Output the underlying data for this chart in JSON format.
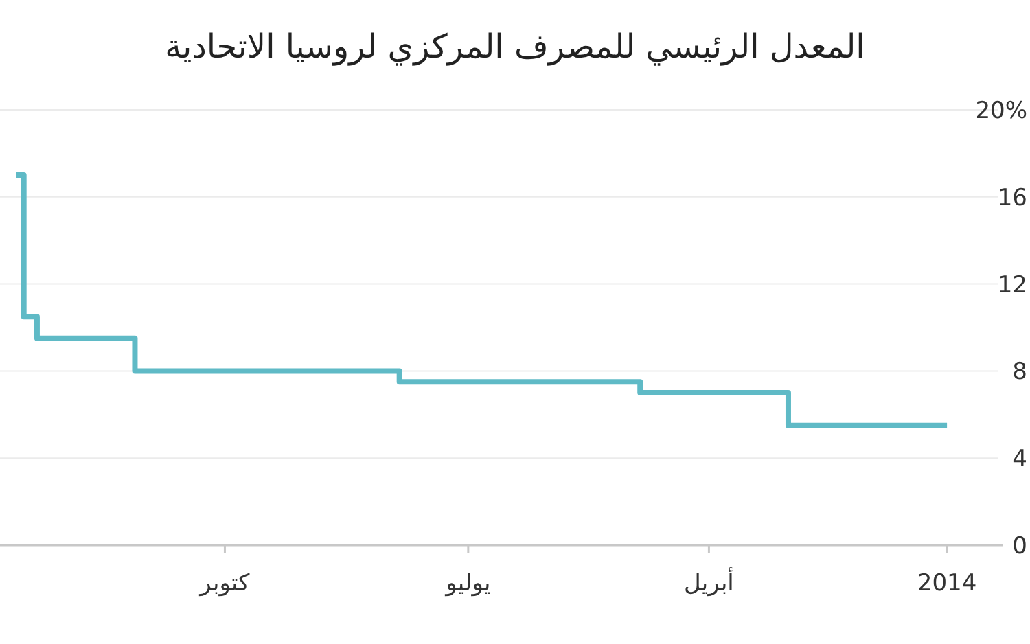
{
  "chart_data": {
    "type": "step",
    "title": "المعدل الرئيسي للمصرف المركزي لروسيا الاتحادية",
    "categories": [
      null,
      null,
      null,
      null,
      null,
      null,
      null,
      null,
      null,
      null,
      null,
      null,
      null,
      null,
      null,
      null,
      null,
      null,
      null,
      null,
      null,
      null,
      null,
      null,
      null,
      null,
      null,
      null,
      null,
      null,
      null,
      null,
      null,
      null,
      null,
      null,
      null,
      null,
      null,
      null,
      null,
      null,
      null,
      null,
      null,
      null,
      null,
      null,
      null,
      null,
      null,
      null,
      null,
      null,
      null,
      null,
      null,
      null,
      null,
      null,
      null,
      null,
      null,
      null,
      null,
      null,
      null,
      null,
      null,
      null,
      null,
      null,
      null,
      null,
      null,
      null,
      null,
      null,
      null,
      "كتوبر",
      null,
      null,
      null,
      null,
      null,
      null,
      null,
      null,
      null,
      null,
      null,
      null,
      null,
      null,
      null,
      null,
      null,
      null,
      null,
      null,
      null,
      null,
      null,
      null,
      null,
      null,
      null,
      null,
      null,
      null,
      null,
      null,
      null,
      null,
      null,
      null,
      null,
      null,
      null,
      null,
      null,
      null,
      null,
      null,
      null,
      null,
      null,
      null,
      null,
      null,
      null,
      null,
      null,
      null,
      null,
      null,
      null,
      null,
      null,
      null,
      null,
      null,
      null,
      null,
      null,
      null,
      null,
      null,
      null,
      null,
      null,
      null,
      null,
      null,
      null,
      null,
      null,
      null,
      null,
      null,
      null,
      null,
      null,
      null,
      null,
      null,
      null,
      null,
      null,
      null,
      null,
      "يوليو",
      null,
      null,
      null,
      null,
      null,
      null,
      null,
      null,
      null,
      null,
      null,
      null,
      null,
      null,
      null,
      null,
      null,
      null,
      null,
      null,
      null,
      null,
      null,
      null,
      null,
      null,
      null,
      null,
      null,
      null,
      null,
      null,
      null,
      null,
      null,
      null,
      null,
      null,
      null,
      null,
      null,
      null,
      null,
      null,
      null,
      null,
      null,
      null,
      null,
      null,
      null,
      null,
      null,
      null,
      null,
      null,
      null,
      null,
      null,
      null,
      null,
      null,
      null,
      null,
      null,
      null,
      null,
      null,
      null,
      null,
      null,
      null,
      null,
      null,
      null,
      null,
      null,
      null,
      null,
      null,
      null,
      null,
      null,
      null,
      null,
      null,
      null,
      null,
      null,
      null,
      "أبريل",
      null,
      null,
      null,
      null,
      null,
      null,
      null,
      null,
      null,
      null,
      null,
      null,
      null,
      null,
      null,
      null,
      null,
      null,
      null,
      null,
      null,
      null,
      null,
      null,
      null,
      null,
      null,
      null,
      null,
      null,
      null,
      null,
      null,
      null,
      null,
      null,
      null,
      null,
      null,
      null,
      null,
      null,
      null,
      null,
      null,
      null,
      null,
      null,
      null,
      null,
      null,
      null,
      null,
      null,
      null,
      null,
      null,
      null,
      null,
      null,
      null,
      null,
      null,
      null,
      null,
      null,
      null,
      null,
      null,
      null,
      null,
      null,
      null,
      null,
      null,
      null,
      null,
      null,
      null,
      null,
      null,
      null,
      null,
      null,
      null,
      null,
      null,
      null,
      null,
      "2014"
    ],
    "values": [
      17,
      17,
      17,
      10.5,
      10.5,
      10.5,
      10.5,
      10.5,
      9.5,
      9.5,
      9.5,
      9.5,
      9.5,
      9.5,
      9.5,
      9.5,
      9.5,
      9.5,
      9.5,
      9.5,
      9.5,
      9.5,
      9.5,
      9.5,
      9.5,
      9.5,
      9.5,
      9.5,
      9.5,
      9.5,
      9.5,
      9.5,
      9.5,
      9.5,
      9.5,
      9.5,
      9.5,
      9.5,
      9.5,
      9.5,
      9.5,
      9.5,
      9.5,
      9.5,
      9.5,
      8,
      8,
      8,
      8,
      8,
      8,
      8,
      8,
      8,
      8,
      8,
      8,
      8,
      8,
      8,
      8,
      8,
      8,
      8,
      8,
      8,
      8,
      8,
      8,
      8,
      8,
      8,
      8,
      8,
      8,
      8,
      8,
      8,
      8,
      8,
      8,
      8,
      8,
      8,
      8,
      8,
      8,
      8,
      8,
      8,
      8,
      8,
      8,
      8,
      8,
      8,
      8,
      8,
      8,
      8,
      8,
      8,
      8,
      8,
      8,
      8,
      8,
      8,
      8,
      8,
      8,
      8,
      8,
      8,
      8,
      8,
      8,
      8,
      8,
      8,
      8,
      8,
      8,
      8,
      8,
      8,
      8,
      8,
      8,
      8,
      8,
      8,
      8,
      8,
      8,
      8,
      8,
      8,
      8,
      8,
      8,
      8,
      8,
      8,
      8,
      7.5,
      7.5,
      7.5,
      7.5,
      7.5,
      7.5,
      7.5,
      7.5,
      7.5,
      7.5,
      7.5,
      7.5,
      7.5,
      7.5,
      7.5,
      7.5,
      7.5,
      7.5,
      7.5,
      7.5,
      7.5,
      7.5,
      7.5,
      7.5,
      7.5,
      7.5,
      7.5,
      7.5,
      7.5,
      7.5,
      7.5,
      7.5,
      7.5,
      7.5,
      7.5,
      7.5,
      7.5,
      7.5,
      7.5,
      7.5,
      7.5,
      7.5,
      7.5,
      7.5,
      7.5,
      7.5,
      7.5,
      7.5,
      7.5,
      7.5,
      7.5,
      7.5,
      7.5,
      7.5,
      7.5,
      7.5,
      7.5,
      7.5,
      7.5,
      7.5,
      7.5,
      7.5,
      7.5,
      7.5,
      7.5,
      7.5,
      7.5,
      7.5,
      7.5,
      7.5,
      7.5,
      7.5,
      7.5,
      7.5,
      7.5,
      7.5,
      7.5,
      7.5,
      7.5,
      7.5,
      7.5,
      7.5,
      7.5,
      7.5,
      7.5,
      7.5,
      7.5,
      7.5,
      7.5,
      7.5,
      7.5,
      7,
      7,
      7,
      7,
      7,
      7,
      7,
      7,
      7,
      7,
      7,
      7,
      7,
      7,
      7,
      7,
      7,
      7,
      7,
      7,
      7,
      7,
      7,
      7,
      7,
      7,
      7,
      7,
      7,
      7,
      7,
      7,
      7,
      7,
      7,
      7,
      7,
      7,
      7,
      7,
      7,
      7,
      7,
      7,
      7,
      7,
      7,
      7,
      7,
      7,
      7,
      7,
      7,
      7,
      7,
      7,
      5.5,
      5.5,
      5.5,
      5.5,
      5.5,
      5.5,
      5.5,
      5.5,
      5.5,
      5.5,
      5.5,
      5.5,
      5.5,
      5.5,
      5.5,
      5.5,
      5.5,
      5.5,
      5.5,
      5.5,
      5.5,
      5.5,
      5.5,
      5.5,
      5.5,
      5.5,
      5.5,
      5.5,
      5.5,
      5.5,
      5.5,
      5.5,
      5.5,
      5.5,
      5.5,
      5.5,
      5.5,
      5.5,
      5.5,
      5.5,
      5.5,
      5.5,
      5.5,
      5.5,
      5.5,
      5.5,
      5.5,
      5.5,
      5.5,
      5.5,
      5.5,
      5.5,
      5.5,
      5.5,
      5.5,
      5.5,
      5.5,
      5.5,
      5.5,
      5.5,
      5.5
    ],
    "color": "#5fbac6",
    "ylim": [
      0,
      20
    ],
    "yticks": [
      0,
      4,
      8,
      12,
      16,
      {
        "value": 20,
        "label": "20%"
      }
    ],
    "grid": "y"
  }
}
